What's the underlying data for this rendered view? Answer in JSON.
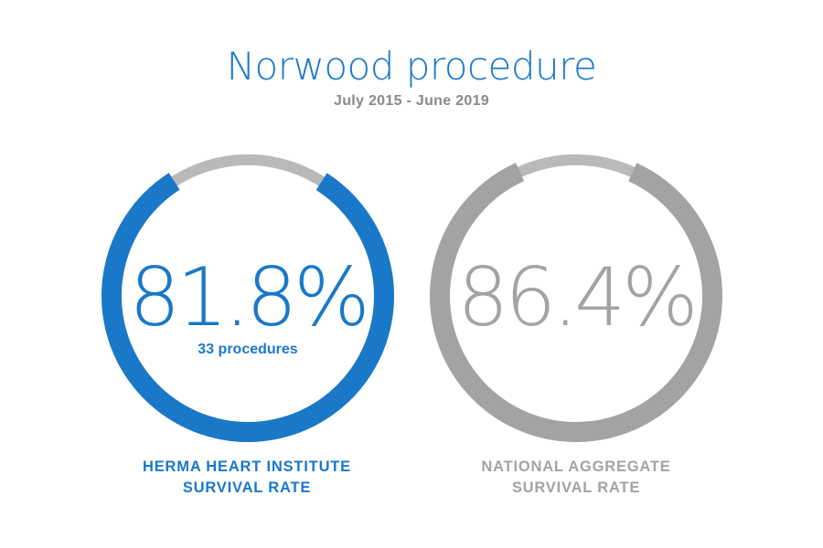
{
  "chart_data": {
    "type": "donut",
    "title": "Norwood procedure",
    "subtitle": "July 2015 - June 2019",
    "unit": "%",
    "colors": {
      "title": "#1a78c8",
      "subtitle": "#8a8a8a",
      "track": "#b9b9b9"
    },
    "items": [
      {
        "value": 81.8,
        "value_label": "81.8%",
        "detail": "33 procedures",
        "label_lines": [
          "HERMA HEART INSTITUTE",
          "SURVIVAL RATE"
        ],
        "color": "#1a78c8"
      },
      {
        "value": 86.4,
        "value_label": "86.4%",
        "detail": "",
        "label_lines": [
          "NATIONAL AGGREGATE",
          "SURVIVAL RATE"
        ],
        "color": "#a3a3a3"
      }
    ]
  }
}
